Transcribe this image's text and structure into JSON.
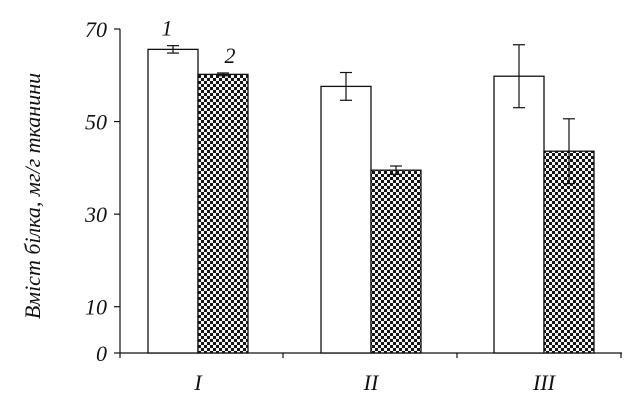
{
  "chart_data": {
    "type": "bar",
    "title": "",
    "xlabel": "",
    "ylabel": "Вміст білка, мг/г тканини",
    "categories": [
      "I",
      "II",
      "III"
    ],
    "series": [
      {
        "label_on_chart": "1",
        "values": [
          65.6,
          57.6,
          59.8
        ],
        "errors": [
          0.8,
          3.0,
          6.8
        ],
        "fill": "#ffffff"
      },
      {
        "label_on_chart": "2",
        "values": [
          60.2,
          39.5,
          43.6
        ],
        "errors": [
          0.3,
          0.9,
          7.0
        ],
        "fill": "checkered"
      }
    ],
    "ylim": [
      0,
      70
    ],
    "yticks": [
      0,
      10,
      30,
      50,
      70
    ],
    "grid": false,
    "legend": "numeric labels above first-group bars"
  },
  "colors": {
    "ink": "#111111",
    "bar_fill_series1": "#ffffff",
    "checker_dark": "#151515",
    "checker_light": "#f4f4f4"
  }
}
